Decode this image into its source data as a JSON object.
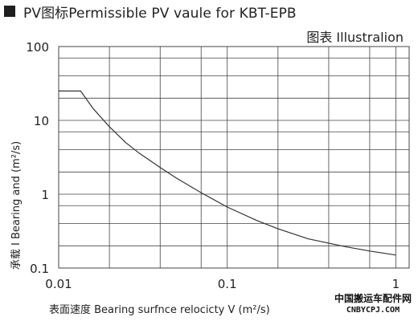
{
  "header": {
    "title": "PV图标Permissible PV vaule for KBT-EPB",
    "illustration_label": "图表  Illustralion"
  },
  "watermark": {
    "cn": "中国搬运车配件网",
    "en": "CNBYCPJ.COM"
  },
  "colors": {
    "line": "#333333",
    "grid": "#444444"
  },
  "chart_data": {
    "type": "line",
    "xscale": "log",
    "yscale": "log",
    "xlim": [
      0.01,
      1.2
    ],
    "ylim": [
      0.1,
      100
    ],
    "grid": true,
    "xlabel": "表面速度  Bearing  surfnce  relocicty  V (m²/s)",
    "ylabel": "承载 I Bearing and (m²/s)",
    "xticks": [
      {
        "value": 0.01,
        "label": "0.01"
      },
      {
        "value": 0.1,
        "label": "0.1"
      },
      {
        "value": 1,
        "label": "1"
      }
    ],
    "yticks": [
      {
        "value": 100,
        "label": "100"
      },
      {
        "value": 10,
        "label": "10"
      },
      {
        "value": 1,
        "label": "1"
      },
      {
        "value": 0.1,
        "label": "0.1"
      }
    ],
    "series": [
      {
        "x": [
          0.01,
          0.0135,
          0.016,
          0.02,
          0.025,
          0.03,
          0.04,
          0.05,
          0.07,
          0.1,
          0.15,
          0.2,
          0.3,
          0.5,
          0.7,
          1.0
        ],
        "y": [
          25,
          25,
          14.5,
          8.2,
          5.0,
          3.6,
          2.3,
          1.65,
          1.05,
          0.67,
          0.44,
          0.34,
          0.25,
          0.195,
          0.17,
          0.15
        ]
      }
    ]
  }
}
